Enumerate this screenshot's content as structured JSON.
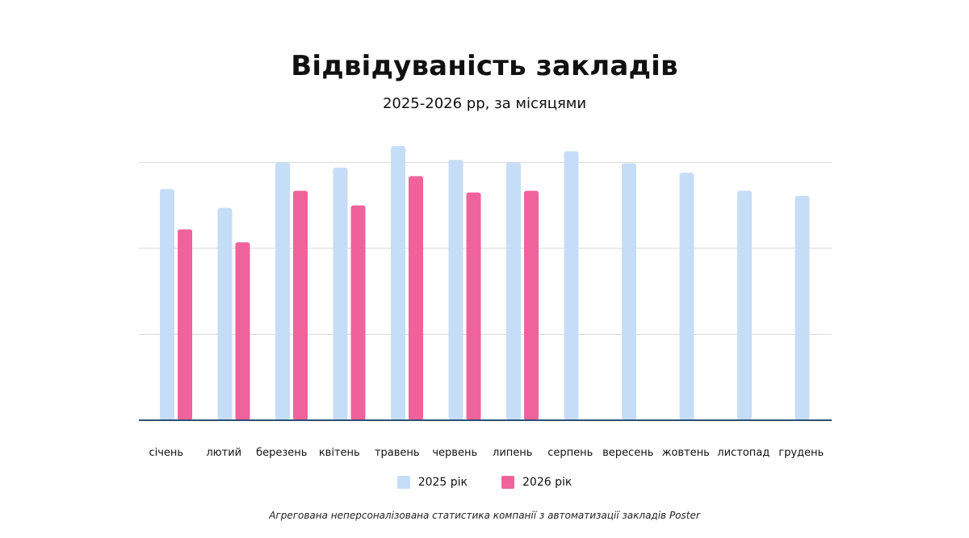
{
  "title": "Відвідуваність закладів",
  "subtitle": "2025-2026 рр, за місяцями",
  "legend": [
    {
      "label": "2025 рік",
      "color": "#c6ddf7"
    },
    {
      "label": "2026 рік",
      "color": "#f0629c"
    }
  ],
  "footnote": "Агрегована неперсоналізована статистика компанії з автоматизації закладів Poster",
  "chart_data": {
    "type": "bar",
    "title": "Відвідуваність закладів",
    "subtitle": "2025-2026 рр, за місяцями",
    "categories": [
      "січень",
      "лютий",
      "березень",
      "квітень",
      "травень",
      "червень",
      "липень",
      "серпень",
      "вересень",
      "жовтень",
      "листопад",
      "грудень"
    ],
    "series": [
      {
        "name": "2025 рік",
        "color": "#c6ddf7",
        "values": [
          2.69,
          2.47,
          3.0,
          2.94,
          3.19,
          3.03,
          3.0,
          3.13,
          2.99,
          2.88,
          2.67,
          2.61
        ]
      },
      {
        "name": "2026 рік",
        "color": "#f0629c",
        "values": [
          2.22,
          2.07,
          2.67,
          2.5,
          2.84,
          2.65,
          2.67,
          null,
          null,
          null,
          null,
          null
        ]
      }
    ],
    "ylim": [
      0,
      3.2
    ],
    "gridlines": [
      1,
      2,
      3
    ],
    "grid": true,
    "ytick_labels_visible": false,
    "legend_position": "bottom"
  }
}
